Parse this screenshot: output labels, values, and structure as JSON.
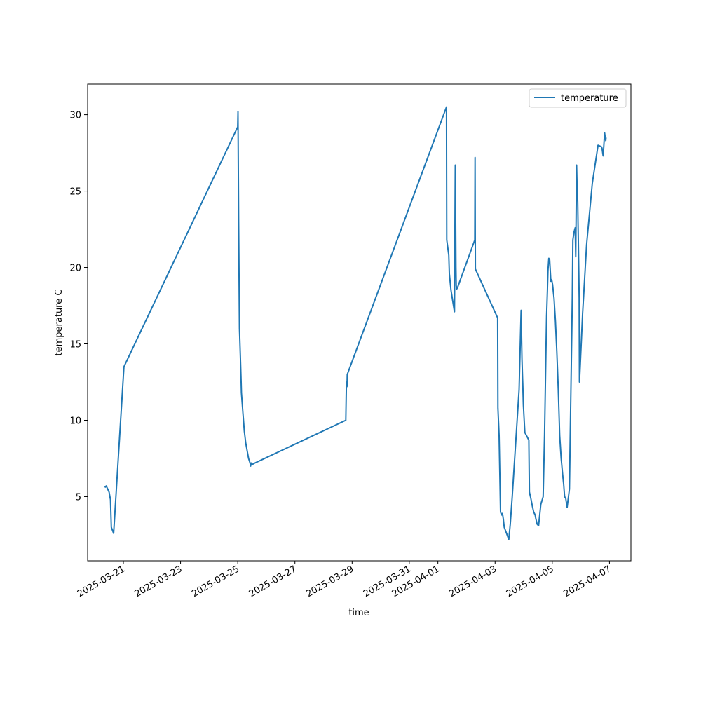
{
  "chart_data": {
    "type": "line",
    "title": "",
    "xlabel": "time",
    "ylabel": "temperature C",
    "x_type": "datetime",
    "xlim": [
      "2025-03-19T18:00",
      "2025-04-07T18:00"
    ],
    "ylim": [
      0.8,
      32.0
    ],
    "x_ticks": [
      "2025-03-21",
      "2025-03-23",
      "2025-03-25",
      "2025-03-27",
      "2025-03-29",
      "2025-03-31",
      "2025-04-01",
      "2025-04-03",
      "2025-04-05",
      "2025-04-07"
    ],
    "y_ticks": [
      5,
      10,
      15,
      20,
      25,
      30
    ],
    "legend": {
      "position": "top-right",
      "entries": [
        "temperature"
      ]
    },
    "grid": false,
    "colors": {
      "series": "#1f77b4"
    },
    "series": [
      {
        "name": "temperature",
        "x": [
          "2025-03-20T08:24",
          "2025-03-20T09:36",
          "2025-03-20T10:48",
          "2025-03-20T12:00",
          "2025-03-20T13:12",
          "2025-03-20T13:55",
          "2025-03-20T15:50",
          "2025-03-21T00:29",
          "2025-03-25T00:00",
          "2025-03-25T00:14",
          "2025-03-25T00:43",
          "2025-03-25T01:26",
          "2025-03-25T02:24",
          "2025-03-25T02:53",
          "2025-03-25T03:07",
          "2025-03-25T04:19",
          "2025-03-25T05:31",
          "2025-03-25T06:43",
          "2025-03-25T07:55",
          "2025-03-25T09:07",
          "2025-03-25T10:19",
          "2025-03-25T10:48",
          "2025-03-25T11:17",
          "2025-03-25T12:00",
          "2025-03-25T14:24",
          "2025-03-28T18:43",
          "2025-03-28T19:12",
          "2025-03-28T19:26",
          "2025-03-28T19:41",
          "2025-03-28T19:55",
          "2025-04-01T07:12",
          "2025-04-01T07:26",
          "2025-04-01T09:07",
          "2025-04-01T09:36",
          "2025-04-01T11:02",
          "2025-04-01T13:55",
          "2025-04-01T14:38",
          "2025-04-01T15:07",
          "2025-04-01T15:22",
          "2025-04-01T15:50",
          "2025-04-01T16:34",
          "2025-04-02T06:58",
          "2025-04-02T07:12",
          "2025-04-02T07:26",
          "2025-04-03T02:10",
          "2025-04-03T02:24",
          "2025-04-03T03:22",
          "2025-04-03T04:34",
          "2025-04-03T05:31",
          "2025-04-03T06:14",
          "2025-04-03T06:58",
          "2025-04-03T07:41",
          "2025-04-03T09:36",
          "2025-04-03T11:31",
          "2025-04-03T12:43",
          "2025-04-03T14:24",
          "2025-04-03T20:10",
          "2025-04-03T21:50",
          "2025-04-03T22:19",
          "2025-04-03T22:34",
          "2025-04-03T23:02",
          "2025-04-03T23:17",
          "2025-04-03T23:46",
          "2025-04-04T00:58",
          "2025-04-04T04:19",
          "2025-04-04T04:48",
          "2025-04-04T06:00",
          "2025-04-04T07:12",
          "2025-04-04T08:24",
          "2025-04-04T09:36",
          "2025-04-04T10:05",
          "2025-04-04T11:17",
          "2025-04-04T12:29",
          "2025-04-04T14:24",
          "2025-04-04T16:19",
          "2025-04-04T17:31",
          "2025-04-04T18:43",
          "2025-04-04T19:12",
          "2025-04-04T19:55",
          "2025-04-04T20:24",
          "2025-04-04T21:07",
          "2025-04-04T21:50",
          "2025-04-04T22:48",
          "2025-04-04T23:31",
          "2025-04-05T00:14",
          "2025-04-05T01:26",
          "2025-04-05T02:38",
          "2025-04-05T03:50",
          "2025-04-05T05:02",
          "2025-04-05T06:14",
          "2025-04-05T07:26",
          "2025-04-05T08:38",
          "2025-04-05T09:36",
          "2025-04-05T10:19",
          "2025-04-05T11:17",
          "2025-04-05T12:29",
          "2025-04-05T14:24",
          "2025-04-05T16:48",
          "2025-04-05T17:17",
          "2025-04-05T18:14",
          "2025-04-05T19:12",
          "2025-04-05T19:41",
          "2025-04-05T20:24",
          "2025-04-05T20:53",
          "2025-04-05T21:22",
          "2025-04-05T21:50",
          "2025-04-05T22:34",
          "2025-04-05T22:48",
          "2025-04-06T00:00",
          "2025-04-06T01:26",
          "2025-04-06T04:48",
          "2025-04-06T09:36",
          "2025-04-06T14:24",
          "2025-04-06T17:17",
          "2025-04-06T17:46",
          "2025-04-06T18:43",
          "2025-04-06T19:55",
          "2025-04-06T20:24",
          "2025-04-06T20:53",
          "2025-04-06T21:07"
        ],
        "y": [
          5.6,
          5.7,
          5.5,
          5.3,
          4.8,
          3.0,
          2.6,
          13.5,
          29.2,
          30.2,
          23.0,
          16.0,
          13.7,
          12.5,
          11.8,
          10.5,
          9.3,
          8.5,
          8.0,
          7.5,
          7.2,
          7.0,
          7.2,
          7.1,
          7.2,
          10.0,
          12.2,
          12.5,
          12.2,
          13.0,
          30.5,
          21.8,
          20.8,
          19.6,
          18.5,
          17.1,
          26.7,
          20.0,
          18.8,
          18.6,
          18.7,
          21.8,
          27.2,
          19.9,
          16.7,
          10.8,
          9.0,
          4.0,
          3.8,
          3.9,
          3.5,
          3.0,
          2.6,
          2.2,
          3.2,
          5.0,
          12.0,
          17.2,
          15.0,
          14.0,
          12.8,
          12.3,
          11.0,
          9.2,
          8.7,
          5.3,
          4.9,
          4.4,
          4.0,
          3.8,
          3.6,
          3.2,
          3.1,
          4.5,
          5.0,
          9.0,
          14.5,
          16.8,
          18.5,
          19.8,
          20.6,
          20.5,
          19.1,
          19.2,
          18.9,
          18.0,
          16.5,
          14.5,
          12.0,
          9.0,
          7.5,
          6.5,
          5.8,
          5.0,
          4.9,
          4.3,
          5.5,
          18.0,
          21.8,
          22.3,
          22.6,
          20.7,
          26.7,
          25.0,
          24.3,
          22.0,
          18.0,
          12.5,
          14.5,
          17.0,
          21.5,
          25.5,
          28.0,
          27.9,
          27.8,
          27.3,
          28.8,
          28.5,
          28.3,
          28.5
        ]
      }
    ]
  }
}
